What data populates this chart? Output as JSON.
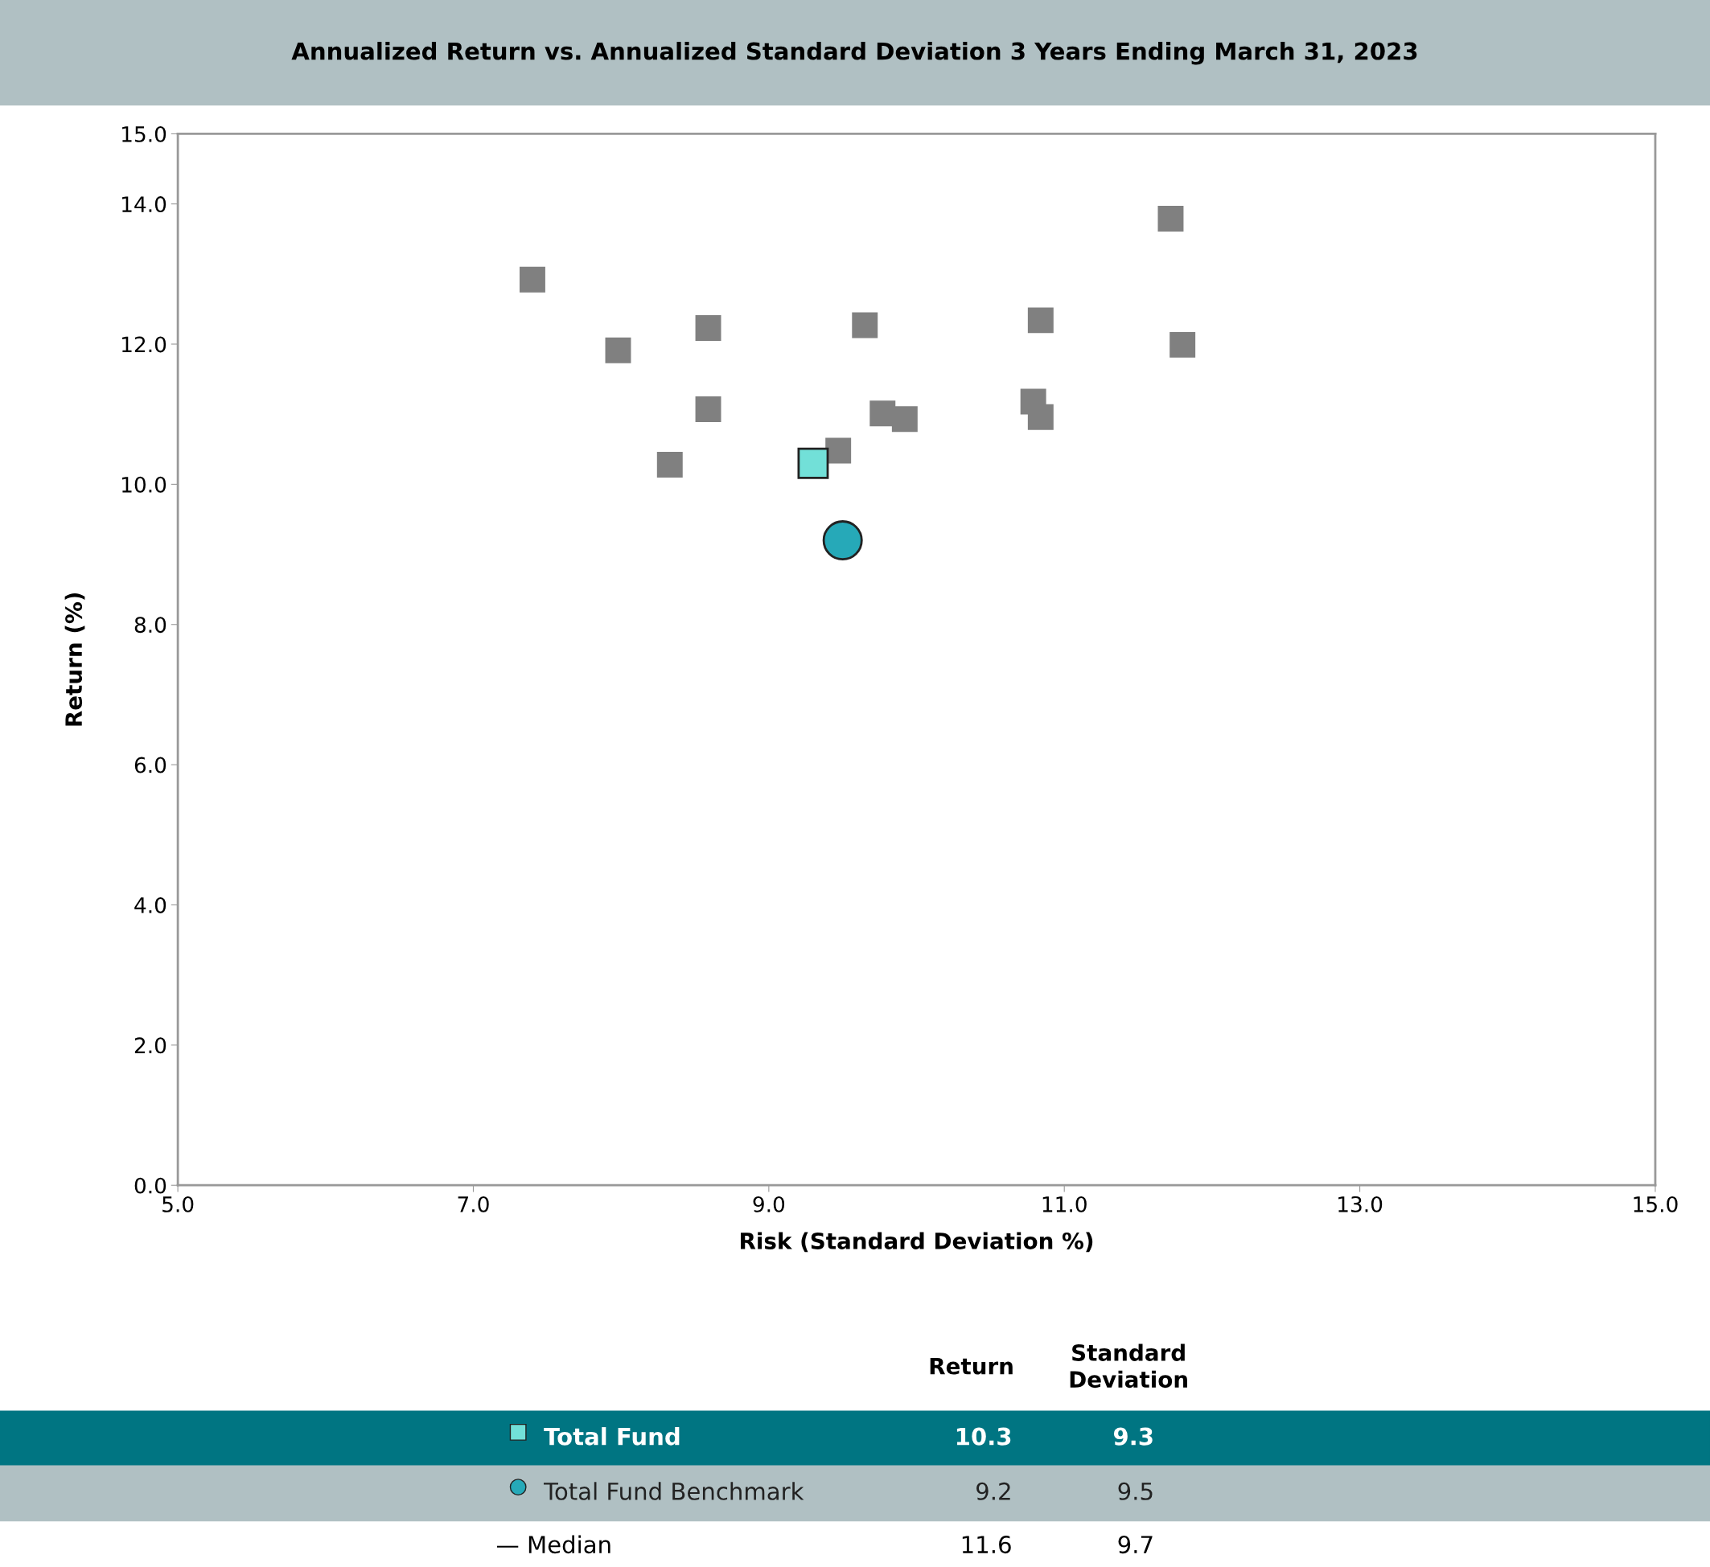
{
  "chart_data": {
    "type": "scatter",
    "title": "Annualized Return vs. Annualized Standard Deviation 3 Years Ending March 31, 2023",
    "xlabel": "Risk (Standard Deviation %)",
    "ylabel": "Return (%)",
    "xlim": [
      5,
      15
    ],
    "ylim": [
      0,
      15
    ],
    "xticks": [
      {
        "value": 5,
        "label": "5.0"
      },
      {
        "value": 7,
        "label": "7.0"
      },
      {
        "value": 9,
        "label": "9.0"
      },
      {
        "value": 11,
        "label": "11.0"
      },
      {
        "value": 13,
        "label": "13.0"
      },
      {
        "value": 15,
        "label": "15.0"
      }
    ],
    "yticks": [
      {
        "value": 0,
        "label": "0.0"
      },
      {
        "value": 2,
        "label": "2.0"
      },
      {
        "value": 4,
        "label": "4.0"
      },
      {
        "value": 6,
        "label": "6.0"
      },
      {
        "value": 8,
        "label": "8.0"
      },
      {
        "value": 10,
        "label": "10.0"
      },
      {
        "value": 12,
        "label": "12.0"
      },
      {
        "value": 14,
        "label": "14.0"
      },
      {
        "value": 15,
        "label": "15.0"
      }
    ],
    "grid": false,
    "legend": "bottom",
    "series": [
      {
        "color": "#808080",
        "marker": "square",
        "x": [
          7.4,
          7.98,
          8.59,
          8.59,
          8.33,
          9.65,
          9.47,
          9.77,
          9.92,
          10.79,
          10.84,
          10.84,
          11.72,
          11.8
        ],
        "values": [
          12.92,
          11.91,
          12.23,
          11.07,
          10.28,
          12.27,
          10.48,
          11.01,
          10.93,
          11.18,
          10.96,
          12.34,
          13.79,
          11.99
        ]
      },
      {
        "name": "Total Fund",
        "color": "#72e0d8",
        "marker": "square",
        "x": [
          9.3
        ],
        "values": [
          10.3
        ]
      },
      {
        "name": "Total Fund Benchmark",
        "color": "#26a9b8",
        "marker": "circle",
        "x": [
          9.5
        ],
        "values": [
          9.2
        ]
      }
    ],
    "annotations": [
      "Return",
      "Standard\nDeviation",
      "10.3",
      "9.3",
      "9.2",
      "9.5",
      "— Median",
      "11.6",
      "9.7"
    ]
  }
}
